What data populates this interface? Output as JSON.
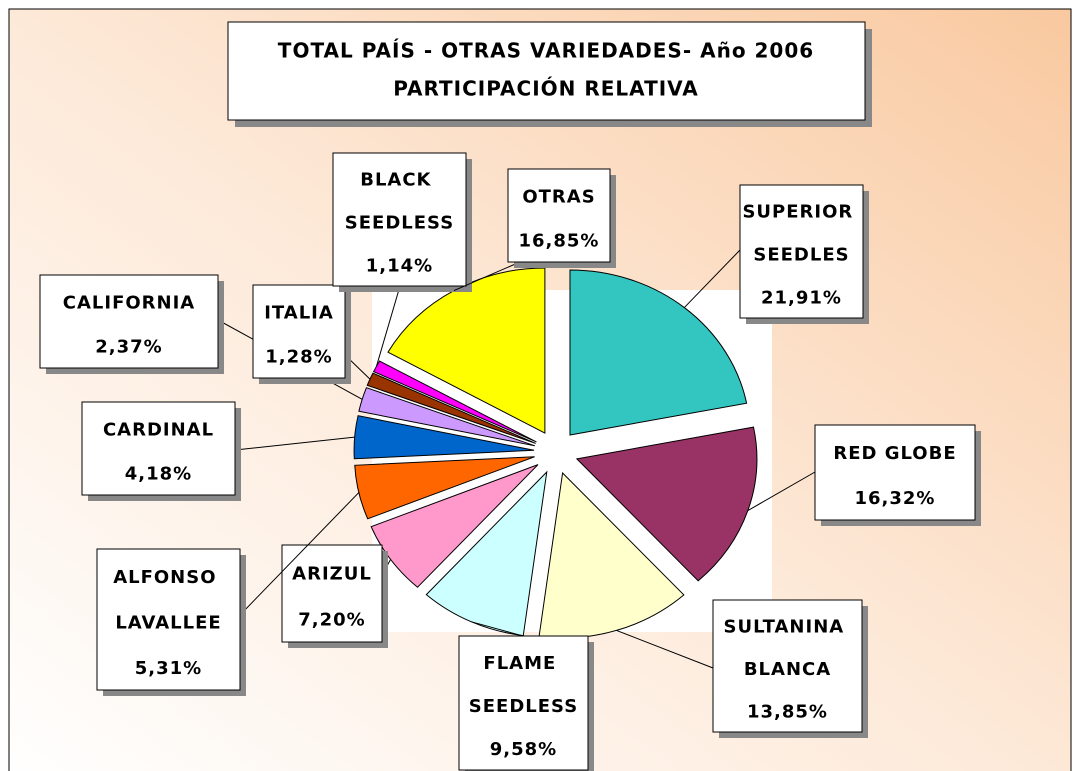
{
  "chart_data": {
    "type": "pie",
    "title": "TOTAL PAÍS - OTRAS VARIEDADES- Año 2006",
    "subtitle": "PARTICIPACIÓN RELATIVA",
    "categories": [
      "SUPERIOR SEEDLES",
      "RED GLOBE",
      "SULTANINA BLANCA",
      "FLAME SEEDLESS",
      "ARIZUL",
      "ALFONSO LAVALLEE",
      "CARDINAL",
      "CALIFORNIA",
      "ITALIA",
      "BLACK SEEDLESS",
      "OTRAS"
    ],
    "values": [
      21.91,
      16.32,
      13.85,
      9.58,
      7.2,
      5.31,
      4.18,
      2.37,
      1.28,
      1.14,
      16.85
    ],
    "value_labels": [
      "21,91%",
      "16,32%",
      "13,85%",
      "9,58%",
      "7,20%",
      "5,31%",
      "4,18%",
      "2,37%",
      "1,28%",
      "1,14%",
      "16,85%"
    ],
    "colors": [
      "#33c6c0",
      "#993366",
      "#ffffcc",
      "#ccffff",
      "#ff99cc",
      "#ff6600",
      "#0066cc",
      "#cc99ff",
      "#993300",
      "#ff00ff",
      "#ffff00"
    ]
  }
}
